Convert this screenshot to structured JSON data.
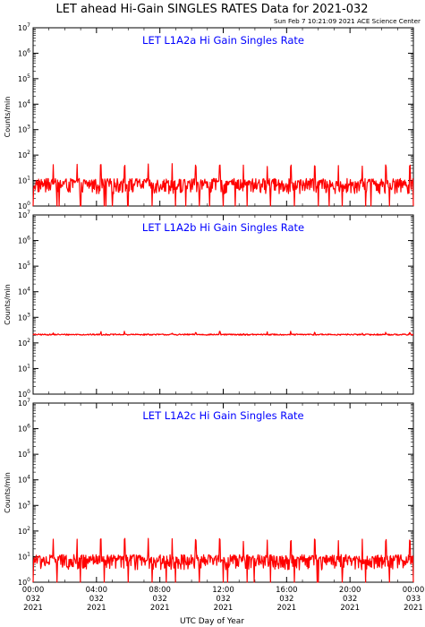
{
  "title": "LET ahead Hi-Gain SINGLES RATES Data for 2021-032",
  "timestamp": "Sun Feb  7 10:21:09 2021 ACE Science Center",
  "xlabel": "UTC Day of Year",
  "colors": {
    "trace": "#ff0000",
    "panel_title": "#0000ff",
    "axes": "#000000"
  },
  "chart_data": [
    {
      "type": "line",
      "title": "LET L1A2a Hi Gain Singles Rate",
      "ylabel": "Counts/min",
      "yscale": "log",
      "ylim": [
        1,
        10000000
      ],
      "xlim": [
        0,
        24
      ],
      "x_unit": "hours UTC, day 032",
      "baseline": 6,
      "noise_range": [
        3,
        12
      ],
      "dip_value": 0.5,
      "spike_value": 40,
      "spike_period_hours": 1.5,
      "series": [
        {
          "values_desc": "noisy baseline ~6 counts/min with periodic spikes ~40 and dips below 1"
        }
      ]
    },
    {
      "type": "line",
      "title": "LET L1A2b Hi Gain Singles Rate",
      "ylabel": "Counts/min",
      "yscale": "log",
      "ylim": [
        1,
        10000000
      ],
      "xlim": [
        0,
        24
      ],
      "x_unit": "hours UTC, day 032",
      "baseline": 210,
      "noise_range": [
        200,
        225
      ],
      "spike_value": 250,
      "spike_period_hours": 1.5,
      "series": [
        {
          "values_desc": "steady ~210 counts/min with small periodic bumps"
        }
      ]
    },
    {
      "type": "line",
      "title": "LET L1A2c Hi Gain Singles Rate",
      "ylabel": "Counts/min",
      "yscale": "log",
      "ylim": [
        1,
        10000000
      ],
      "xlim": [
        0,
        24
      ],
      "x_unit": "hours UTC, day 032",
      "baseline": 6,
      "noise_range": [
        3,
        12
      ],
      "dip_value": 0.5,
      "spike_value": 45,
      "spike_period_hours": 1.5,
      "series": [
        {
          "values_desc": "noisy baseline ~6 counts/min with periodic spikes ~45 and dips below 1"
        }
      ]
    }
  ],
  "y_tick_exponents": [
    0,
    1,
    2,
    3,
    4,
    5,
    6,
    7
  ],
  "x_ticks": [
    {
      "hour": 0,
      "time": "00:00",
      "doy": "032",
      "year": "2021"
    },
    {
      "hour": 4,
      "time": "04:00",
      "doy": "032",
      "year": "2021"
    },
    {
      "hour": 8,
      "time": "08:00",
      "doy": "032",
      "year": "2021"
    },
    {
      "hour": 12,
      "time": "12:00",
      "doy": "032",
      "year": "2021"
    },
    {
      "hour": 16,
      "time": "16:00",
      "doy": "032",
      "year": "2021"
    },
    {
      "hour": 20,
      "time": "20:00",
      "doy": "032",
      "year": "2021"
    },
    {
      "hour": 24,
      "time": "00:00",
      "doy": "033",
      "year": "2021"
    }
  ]
}
